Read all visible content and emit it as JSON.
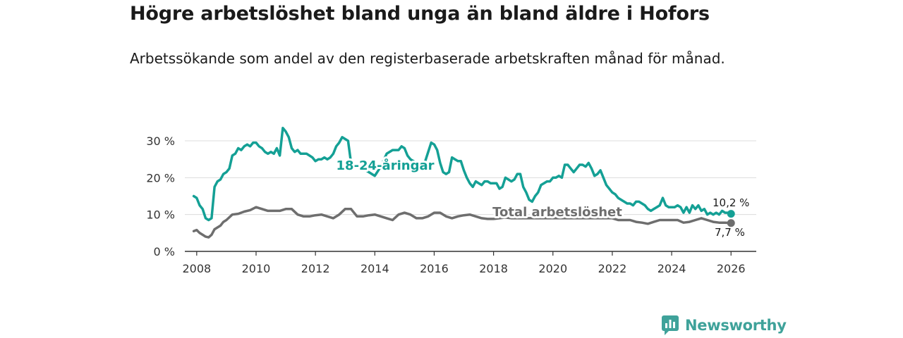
{
  "title": "Högre arbetslöshet bland unga än bland äldre i Hofors",
  "subtitle": "Arbetssökande som andel av den registerbaserade arbetskraften månad för månad.",
  "brand": "Newsworthy",
  "colors": {
    "youth": "#14a095",
    "total": "#6e6e6e",
    "grid": "#dcdcdc",
    "axis": "#333333"
  },
  "chart_data": {
    "type": "line",
    "title": "Högre arbetslöshet bland unga än bland äldre i Hofors",
    "xlabel": "",
    "ylabel": "",
    "xlim": [
      2007.6,
      2026.85
    ],
    "ylim": [
      0,
      30
    ],
    "y_ticks": [
      0,
      10,
      20,
      30
    ],
    "y_tick_labels": [
      "0 %",
      "10 %",
      "20 %",
      "30 %"
    ],
    "x_ticks": [
      2008,
      2010,
      2012,
      2014,
      2016,
      2018,
      2020,
      2022,
      2024,
      2026
    ],
    "x_tick_labels": [
      "2008",
      "2010",
      "2012",
      "2014",
      "2016",
      "2018",
      "2020",
      "2022",
      "2024",
      "2026"
    ],
    "grid": true,
    "series": [
      {
        "name": "18-24-åringar",
        "label": "18-24-åringar",
        "end_label": "10,2 %",
        "x": [
          2007.9,
          2008.0,
          2008.1,
          2008.2,
          2008.3,
          2008.4,
          2008.5,
          2008.6,
          2008.7,
          2008.8,
          2008.9,
          2009.0,
          2009.1,
          2009.2,
          2009.3,
          2009.4,
          2009.5,
          2009.6,
          2009.7,
          2009.8,
          2009.9,
          2010.0,
          2010.1,
          2010.2,
          2010.3,
          2010.4,
          2010.5,
          2010.6,
          2010.7,
          2010.8,
          2010.9,
          2011.0,
          2011.1,
          2011.2,
          2011.3,
          2011.4,
          2011.5,
          2011.6,
          2011.7,
          2011.8,
          2011.9,
          2012.0,
          2012.1,
          2012.2,
          2012.3,
          2012.4,
          2012.5,
          2012.6,
          2012.7,
          2012.8,
          2012.9,
          2013.0,
          2013.1,
          2013.2,
          2013.4,
          2013.6,
          2013.8,
          2014.0,
          2014.2,
          2014.4,
          2014.6,
          2014.8,
          2014.9,
          2015.0,
          2015.1,
          2015.2,
          2015.4,
          2015.6,
          2015.8,
          2015.9,
          2016.0,
          2016.1,
          2016.2,
          2016.3,
          2016.4,
          2016.5,
          2016.6,
          2016.7,
          2016.8,
          2016.9,
          2017.0,
          2017.1,
          2017.2,
          2017.3,
          2017.4,
          2017.5,
          2017.6,
          2017.7,
          2017.8,
          2017.9,
          2018.0,
          2018.1,
          2018.2,
          2018.3,
          2018.4,
          2018.5,
          2018.6,
          2018.7,
          2018.8,
          2018.9,
          2019.0,
          2019.1,
          2019.2,
          2019.3,
          2019.4,
          2019.5,
          2019.6,
          2019.7,
          2019.8,
          2019.9,
          2020.0,
          2020.1,
          2020.2,
          2020.3,
          2020.4,
          2020.5,
          2020.6,
          2020.7,
          2020.8,
          2020.9,
          2021.0,
          2021.1,
          2021.2,
          2021.3,
          2021.4,
          2021.5,
          2021.6,
          2021.7,
          2021.8,
          2021.9,
          2022.0,
          2022.1,
          2022.2,
          2022.3,
          2022.4,
          2022.5,
          2022.6,
          2022.7,
          2022.8,
          2022.9,
          2023.0,
          2023.1,
          2023.2,
          2023.3,
          2023.4,
          2023.5,
          2023.6,
          2023.7,
          2023.8,
          2023.9,
          2024.0,
          2024.1,
          2024.2,
          2024.3,
          2024.4,
          2024.5,
          2024.6,
          2024.7,
          2024.8,
          2024.9,
          2025.0,
          2025.1,
          2025.2,
          2025.3,
          2025.4,
          2025.5,
          2025.6,
          2025.7,
          2025.8,
          2025.9,
          2026.0
        ],
        "values": [
          15.0,
          14.5,
          12.5,
          11.5,
          9.0,
          8.5,
          9.0,
          17.5,
          19.0,
          19.5,
          21.0,
          21.5,
          22.5,
          26.0,
          26.5,
          28.0,
          27.5,
          28.5,
          29.0,
          28.5,
          29.5,
          29.5,
          28.5,
          28.0,
          27.0,
          26.5,
          27.0,
          26.5,
          28.0,
          26.0,
          33.5,
          32.5,
          31.0,
          28.0,
          27.0,
          27.5,
          26.5,
          26.5,
          26.5,
          26.0,
          25.5,
          24.5,
          25.0,
          25.0,
          25.5,
          25.0,
          25.5,
          26.5,
          28.5,
          29.5,
          31.0,
          30.5,
          30.0,
          24.0,
          23.0,
          22.5,
          21.5,
          20.5,
          23.0,
          26.5,
          27.5,
          27.5,
          28.5,
          28.0,
          26.0,
          25.0,
          24.0,
          22.0,
          27.0,
          29.5,
          29.0,
          27.5,
          24.0,
          21.5,
          21.0,
          21.5,
          25.5,
          25.0,
          24.5,
          24.5,
          22.0,
          20.0,
          18.5,
          17.5,
          19.0,
          18.5,
          18.0,
          19.0,
          19.0,
          18.5,
          18.5,
          18.5,
          17.0,
          17.5,
          20.0,
          19.5,
          19.0,
          19.5,
          21.0,
          21.0,
          17.5,
          16.0,
          14.0,
          13.5,
          15.0,
          16.0,
          18.0,
          18.5,
          19.0,
          19.0,
          20.0,
          20.0,
          20.5,
          20.0,
          23.5,
          23.5,
          22.5,
          21.5,
          22.5,
          23.5,
          23.5,
          23.0,
          24.0,
          22.5,
          20.5,
          21.0,
          22.0,
          20.0,
          18.0,
          17.0,
          16.0,
          15.5,
          14.5,
          14.0,
          13.5,
          13.0,
          13.0,
          12.5,
          13.5,
          13.5,
          13.0,
          12.5,
          11.5,
          11.0,
          11.5,
          12.0,
          12.5,
          14.5,
          12.5,
          12.0,
          12.0,
          12.0,
          12.5,
          12.0,
          10.5,
          12.0,
          10.5,
          12.5,
          11.5,
          12.5,
          11.0,
          11.5,
          10.0,
          10.5,
          10.0,
          10.5,
          10.0,
          11.0,
          10.5,
          10.5,
          10.2
        ]
      },
      {
        "name": "Total arbetslöshet",
        "label": "Total arbetslöshet",
        "end_label": "7,7 %",
        "x": [
          2007.9,
          2008.0,
          2008.1,
          2008.2,
          2008.3,
          2008.4,
          2008.5,
          2008.6,
          2008.7,
          2008.8,
          2008.9,
          2009.0,
          2009.2,
          2009.4,
          2009.6,
          2009.8,
          2010.0,
          2010.2,
          2010.4,
          2010.6,
          2010.8,
          2011.0,
          2011.2,
          2011.4,
          2011.6,
          2011.8,
          2012.0,
          2012.2,
          2012.4,
          2012.6,
          2012.8,
          2013.0,
          2013.2,
          2013.4,
          2013.6,
          2013.8,
          2014.0,
          2014.2,
          2014.4,
          2014.6,
          2014.8,
          2015.0,
          2015.2,
          2015.4,
          2015.6,
          2015.8,
          2016.0,
          2016.2,
          2016.4,
          2016.6,
          2016.8,
          2017.0,
          2017.2,
          2017.4,
          2017.6,
          2017.8,
          2018.0,
          2018.2,
          2018.4,
          2018.6,
          2018.8,
          2019.0,
          2019.2,
          2019.4,
          2019.6,
          2019.8,
          2020.0,
          2020.2,
          2020.4,
          2020.6,
          2020.8,
          2021.0,
          2021.2,
          2021.4,
          2021.6,
          2021.8,
          2022.0,
          2022.2,
          2022.4,
          2022.6,
          2022.8,
          2023.0,
          2023.2,
          2023.4,
          2023.6,
          2023.8,
          2024.0,
          2024.2,
          2024.4,
          2024.6,
          2024.8,
          2025.0,
          2025.2,
          2025.4,
          2025.6,
          2025.8,
          2026.0
        ],
        "values": [
          5.5,
          5.8,
          5.0,
          4.5,
          4.0,
          3.8,
          4.5,
          6.0,
          6.5,
          7.0,
          8.0,
          8.5,
          10.0,
          10.2,
          10.8,
          11.2,
          12.0,
          11.5,
          11.0,
          11.0,
          11.0,
          11.5,
          11.5,
          10.0,
          9.5,
          9.5,
          9.8,
          10.0,
          9.5,
          9.0,
          10.0,
          11.5,
          11.5,
          9.5,
          9.5,
          9.8,
          10.0,
          9.5,
          9.0,
          8.5,
          10.0,
          10.5,
          10.0,
          9.0,
          9.0,
          9.5,
          10.5,
          10.5,
          9.5,
          9.0,
          9.5,
          9.8,
          10.0,
          9.5,
          9.0,
          8.8,
          8.8,
          9.0,
          9.2,
          9.0,
          9.0,
          9.0,
          9.0,
          9.0,
          9.0,
          9.0,
          9.0,
          9.0,
          9.0,
          9.0,
          9.0,
          9.0,
          9.0,
          9.0,
          9.0,
          9.0,
          9.0,
          8.5,
          8.5,
          8.5,
          8.0,
          7.8,
          7.5,
          8.0,
          8.5,
          8.5,
          8.5,
          8.5,
          7.8,
          8.0,
          8.5,
          9.0,
          8.5,
          8.0,
          7.8,
          7.8,
          7.7
        ]
      }
    ]
  }
}
